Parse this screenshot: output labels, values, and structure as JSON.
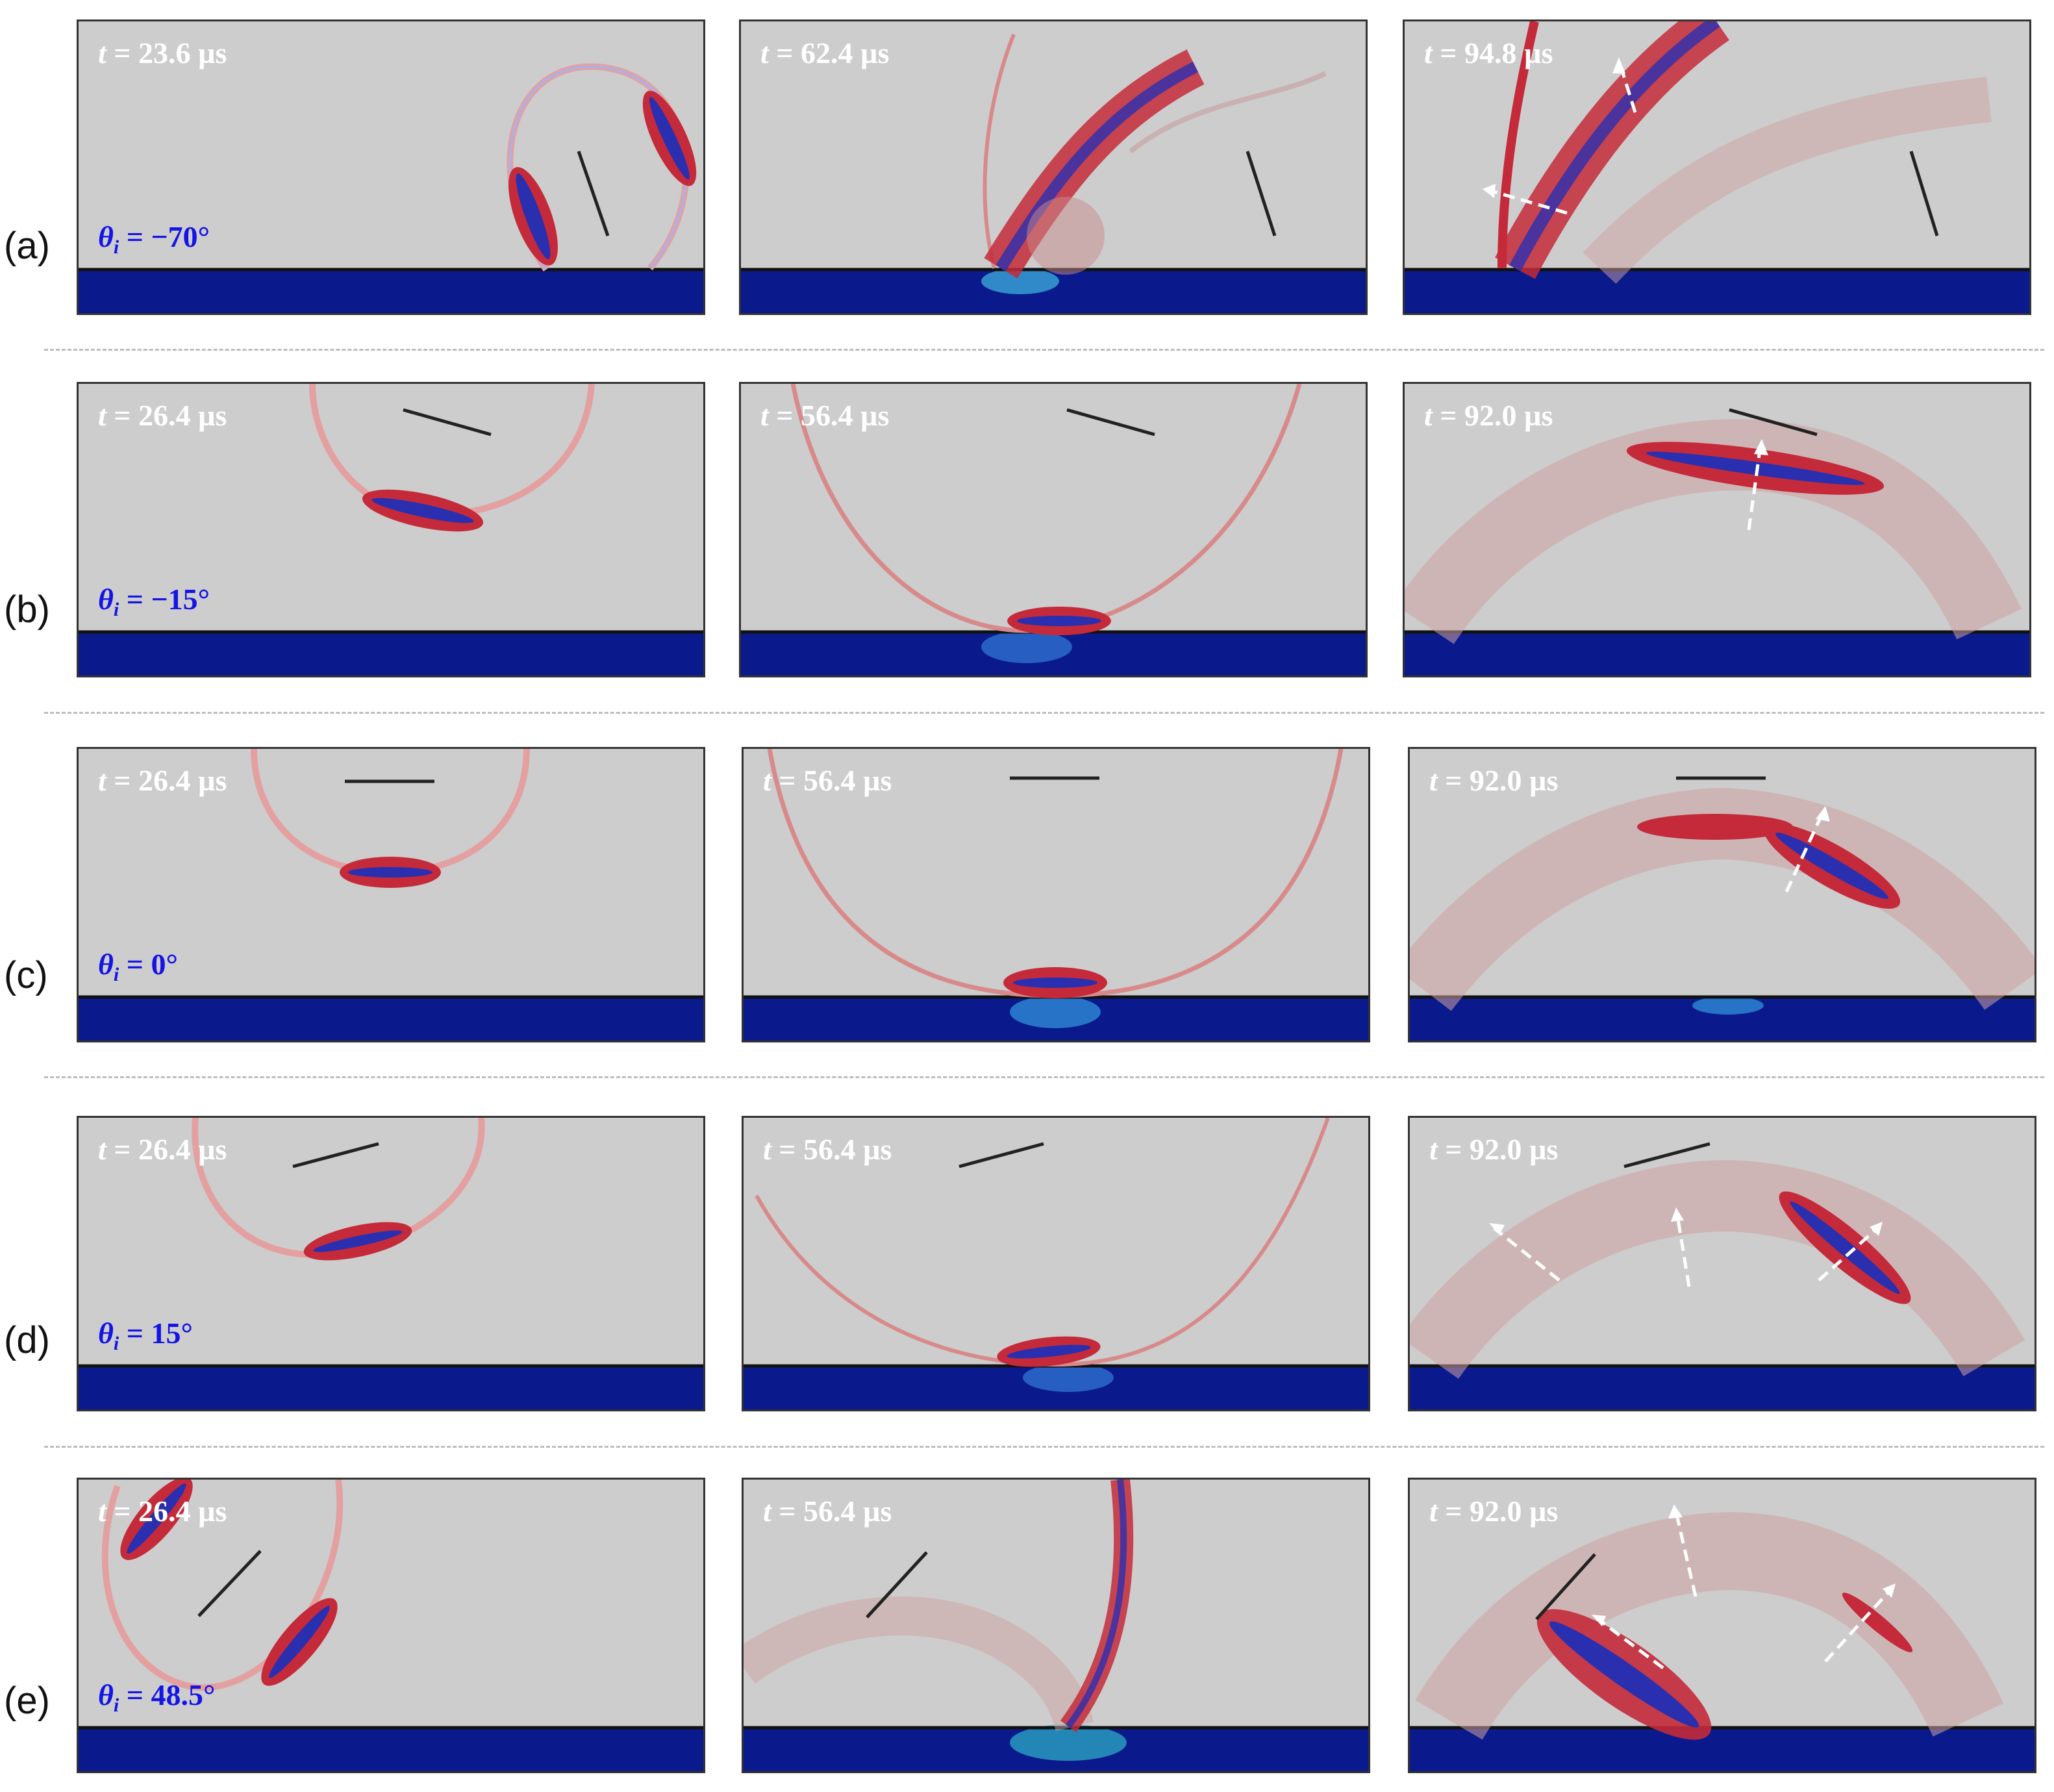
{
  "rows": [
    {
      "label": "(a)",
      "angle": "= −70°",
      "times": [
        "= 23.6 µs",
        "= 62.4 µs",
        "= 94.8 µs"
      ]
    },
    {
      "label": "(b)",
      "angle": "= −15°",
      "times": [
        "= 26.4 µs",
        "= 56.4 µs",
        "= 92.0 µs"
      ]
    },
    {
      "label": "(c)",
      "angle": "= 0°",
      "times": [
        "= 26.4 µs",
        "= 56.4 µs",
        "= 92.0 µs"
      ]
    },
    {
      "label": "(d)",
      "angle": "= 15°",
      "times": [
        "= 26.4 µs",
        "= 56.4 µs",
        "= 92.0 µs"
      ]
    },
    {
      "label": "(e)",
      "angle": "= 48.5°",
      "times": [
        "= 26.4 µs",
        "= 56.4 µs",
        "= 92.0 µs"
      ]
    }
  ],
  "symbols": {
    "time": "t",
    "theta": "θ",
    "theta_sub": "i"
  },
  "colors": {
    "background": "#cdcdcd",
    "wave_red": "#d0202a",
    "wave_blue": "#2b3bd6",
    "substrate": "#0a1a8c",
    "angle_text": "#1414e6",
    "time_text": "#ffffff"
  }
}
